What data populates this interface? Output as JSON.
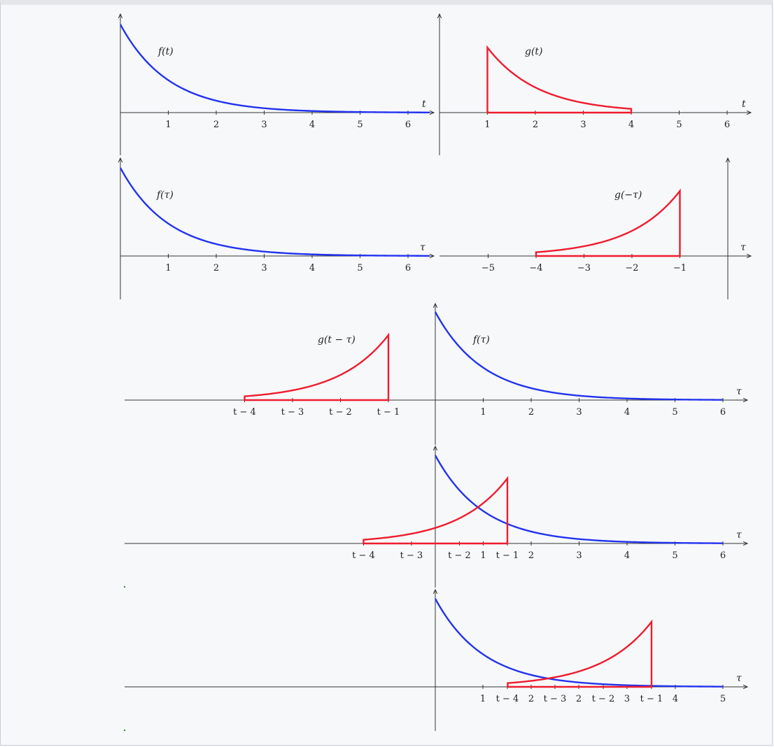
{
  "panels": [
    {
      "id": "f-of-t",
      "label": "f(t)",
      "axis_variable": "t",
      "ticks": [
        "1",
        "2",
        "3",
        "4",
        "5",
        "6"
      ],
      "curve": "exponential decay e^{-t}"
    },
    {
      "id": "g-of-t",
      "label": "g(t)",
      "axis_variable": "t",
      "ticks": [
        "1",
        "2",
        "3",
        "4",
        "5",
        "6"
      ],
      "curve": "g(t) nonzero on [1,4], decaying"
    },
    {
      "id": "f-of-tau",
      "label": "f(τ)",
      "axis_variable": "τ",
      "ticks": [
        "1",
        "2",
        "3",
        "4",
        "5",
        "6"
      ]
    },
    {
      "id": "g-of-neg-tau",
      "label": "g(−τ)",
      "axis_variable": "τ",
      "ticks": [
        "−5",
        "−4",
        "−3",
        "−2",
        "−1"
      ]
    },
    {
      "id": "shift-1",
      "labels": {
        "g": "g(t − τ)",
        "f": "f(τ)"
      },
      "axis_variable": "τ",
      "shift_ticks": [
        "t − 4",
        "t − 3",
        "t − 2",
        "t − 1"
      ],
      "ticks": [
        "1",
        "2",
        "3",
        "4",
        "5",
        "6"
      ],
      "shift": -2.0
    },
    {
      "id": "shift-2",
      "axis_variable": "τ",
      "ticks_row": [
        "t − 4",
        "t − 3",
        "t − 2",
        "1",
        "t − 1",
        "2",
        "3",
        "4",
        "5",
        "6"
      ],
      "shift": 1.5
    },
    {
      "id": "shift-3",
      "axis_variable": "τ",
      "ticks_row": [
        "1",
        "t − 4",
        "2",
        "t − 3",
        "2",
        "t − 2",
        "3",
        "t − 1",
        "4",
        "5"
      ],
      "shift": 4.5
    }
  ],
  "colors": {
    "f": "#2233ee",
    "g": "#ee1c2e",
    "axis": "#333333",
    "background": "#f7f8fa"
  }
}
